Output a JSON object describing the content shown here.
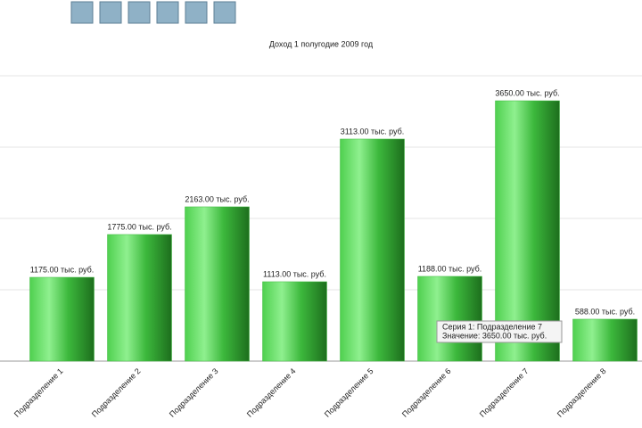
{
  "chart_data": {
    "type": "bar",
    "title": "Доход 1 полугодие 2009 год",
    "categories": [
      "Подразделение 1",
      "Подразделение 2",
      "Подразделение 3",
      "Подразделение 4",
      "Подразделение 5",
      "Подразделение 6",
      "Подразделение 7",
      "Подразделение 8"
    ],
    "values": [
      1175,
      1775,
      2163,
      1113,
      3113,
      1188,
      3650,
      588
    ],
    "value_labels": [
      "1175.00 тыс. руб.",
      "1775.00 тыс. руб.",
      "2163.00 тыс. руб.",
      "1113.00 тыс. руб.",
      "3113.00 тыс. руб.",
      "1188.00 тыс. руб.",
      "3650.00 тыс. руб.",
      "588.00 тыс. руб."
    ],
    "color": "#3cb83c",
    "ylim": [
      0,
      4000
    ],
    "yticks": [
      0,
      1000,
      2000,
      3000,
      4000
    ],
    "grid": true,
    "tooltip": {
      "title": "Серия 1: Подразделение 7",
      "text": "Значение: 3650.00 тыс. руб."
    }
  }
}
